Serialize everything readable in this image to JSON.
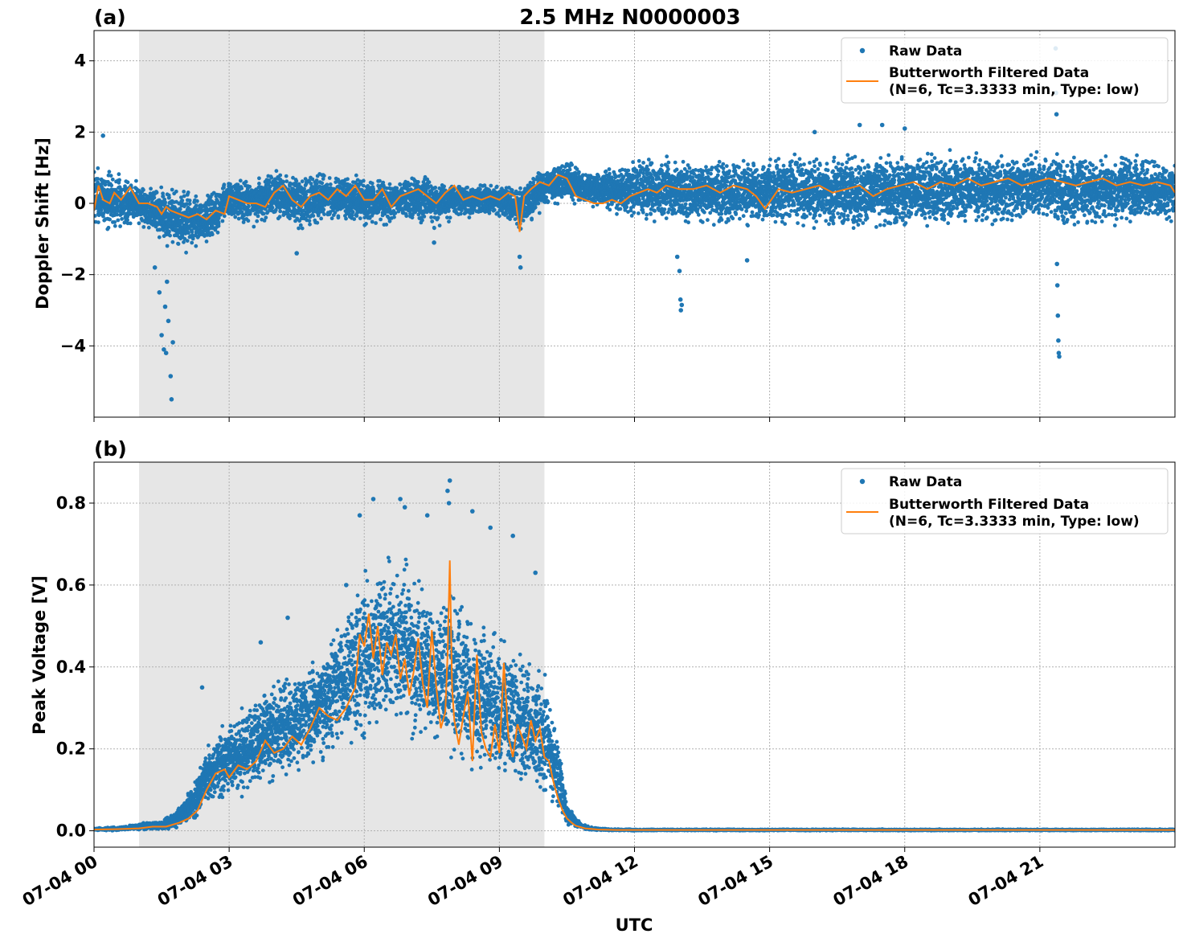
{
  "figure": {
    "title": "2.5 MHz N0000003",
    "xlabel": "UTC",
    "x_tick_labels": [
      "07-04 00",
      "07-04 03",
      "07-04 06",
      "07-04 09",
      "07-04 12",
      "07-04 15",
      "07-04 18",
      "07-04 21"
    ],
    "x_tick_hours": [
      0,
      3,
      6,
      9,
      12,
      15,
      18,
      21
    ],
    "xlim_hours": [
      0,
      24
    ],
    "shaded_interval_hours": [
      1.0,
      10.0
    ],
    "colors": {
      "raw": "#1f77b4",
      "filtered": "#ff7f0e",
      "shade": "#e6e6e6",
      "grid": "#b0b0b0"
    }
  },
  "legend": {
    "raw_label": "Raw Data",
    "filtered_label_line1": "Butterworth Filtered Data",
    "filtered_label_line2": "(N=6, Tc=3.3333 min, Type: low)"
  },
  "chart_data": [
    {
      "type": "scatter",
      "panel_label": "(a)",
      "ylabel": "Doppler Shift [Hz]",
      "ylim": [
        -6.0,
        4.85
      ],
      "y_ticks": [
        -4,
        -2,
        0,
        2,
        4
      ],
      "y_tick_labels": [
        "−4",
        "−2",
        "0",
        "2",
        "4"
      ],
      "series": [
        {
          "name": "Raw Data",
          "kind": "points",
          "envelope": {
            "x": [
              0,
              0.5,
              1,
              1.5,
              2,
              2.5,
              3,
              3.5,
              4,
              4.5,
              5,
              5.5,
              6,
              6.5,
              7,
              7.5,
              8,
              8.5,
              9,
              9.5,
              10,
              10.5,
              11,
              12,
              13,
              14,
              15,
              16,
              17,
              18,
              19,
              20,
              21,
              22,
              23,
              24
            ],
            "low": [
              -1.0,
              -0.8,
              -0.7,
              -1.2,
              -1.5,
              -1.4,
              -0.6,
              -0.7,
              -0.5,
              -0.9,
              -0.7,
              -0.6,
              -0.8,
              -0.7,
              -0.6,
              -0.8,
              -0.5,
              -0.4,
              -0.4,
              -0.9,
              -0.2,
              0.0,
              -0.2,
              -0.6,
              -0.7,
              -0.8,
              -0.8,
              -0.8,
              -0.9,
              -0.8,
              -0.8,
              -0.7,
              -0.7,
              -0.8,
              -0.7,
              -0.7
            ],
            "high": [
              1.3,
              1.0,
              0.7,
              0.6,
              0.5,
              0.4,
              0.8,
              0.7,
              1.0,
              0.9,
              1.0,
              0.9,
              0.9,
              0.8,
              0.9,
              0.8,
              0.7,
              0.6,
              0.6,
              0.6,
              1.1,
              1.3,
              0.9,
              1.4,
              1.4,
              1.4,
              1.5,
              1.5,
              1.5,
              1.6,
              1.6,
              1.5,
              1.6,
              1.5,
              1.5,
              1.4
            ]
          },
          "outliers": [
            {
              "x": 1.35,
              "y": -1.8
            },
            {
              "x": 1.45,
              "y": -2.5
            },
            {
              "x": 1.5,
              "y": -3.7
            },
            {
              "x": 1.55,
              "y": -4.1
            },
            {
              "x": 1.6,
              "y": -4.2
            },
            {
              "x": 1.65,
              "y": -3.3
            },
            {
              "x": 1.7,
              "y": -4.85
            },
            {
              "x": 1.72,
              "y": -5.5
            },
            {
              "x": 1.75,
              "y": -3.9
            },
            {
              "x": 1.58,
              "y": -2.9
            },
            {
              "x": 1.62,
              "y": -2.2
            },
            {
              "x": 0.2,
              "y": 1.9
            },
            {
              "x": 13.0,
              "y": -1.9
            },
            {
              "x": 13.02,
              "y": -2.7
            },
            {
              "x": 13.05,
              "y": -2.85
            },
            {
              "x": 13.03,
              "y": -3.0
            },
            {
              "x": 12.95,
              "y": -1.5
            },
            {
              "x": 14.5,
              "y": -1.6
            },
            {
              "x": 21.35,
              "y": 4.35
            },
            {
              "x": 21.37,
              "y": 2.5
            },
            {
              "x": 21.36,
              "y": 3.1
            },
            {
              "x": 21.38,
              "y": -1.7
            },
            {
              "x": 21.39,
              "y": -2.3
            },
            {
              "x": 21.4,
              "y": -3.15
            },
            {
              "x": 21.41,
              "y": -3.85
            },
            {
              "x": 21.42,
              "y": -4.2
            },
            {
              "x": 21.43,
              "y": -4.3
            },
            {
              "x": 17.0,
              "y": 2.2
            },
            {
              "x": 17.5,
              "y": 2.2
            },
            {
              "x": 18.0,
              "y": 2.1
            },
            {
              "x": 16.0,
              "y": 2.0
            },
            {
              "x": 9.45,
              "y": -1.5
            },
            {
              "x": 9.47,
              "y": -1.8
            },
            {
              "x": 7.55,
              "y": -1.1
            },
            {
              "x": 4.5,
              "y": -1.4
            }
          ]
        },
        {
          "name": "Butterworth Filtered Data\n(N=6, Tc=3.3333 min, Type: low)",
          "kind": "line",
          "x": [
            0,
            0.1,
            0.2,
            0.35,
            0.45,
            0.6,
            0.8,
            1.0,
            1.2,
            1.4,
            1.5,
            1.6,
            1.7,
            1.9,
            2.1,
            2.3,
            2.5,
            2.7,
            2.9,
            3.0,
            3.2,
            3.4,
            3.6,
            3.8,
            4.0,
            4.2,
            4.4,
            4.6,
            4.8,
            5.0,
            5.2,
            5.4,
            5.6,
            5.8,
            6.0,
            6.2,
            6.4,
            6.6,
            6.8,
            7.0,
            7.2,
            7.4,
            7.6,
            7.8,
            8.0,
            8.2,
            8.4,
            8.6,
            8.8,
            9.0,
            9.2,
            9.35,
            9.45,
            9.55,
            9.7,
            9.9,
            10.1,
            10.3,
            10.5,
            10.7,
            10.9,
            11.1,
            11.3,
            11.5,
            11.7,
            11.9,
            12.1,
            12.3,
            12.5,
            12.7,
            13.0,
            13.3,
            13.6,
            13.9,
            14.2,
            14.5,
            14.7,
            14.9,
            15.2,
            15.5,
            15.8,
            16.1,
            16.4,
            16.7,
            17.0,
            17.3,
            17.6,
            17.9,
            18.2,
            18.5,
            18.8,
            19.1,
            19.4,
            19.7,
            20.0,
            20.3,
            20.6,
            20.9,
            21.2,
            21.5,
            21.8,
            22.1,
            22.4,
            22.7,
            23.0,
            23.3,
            23.6,
            23.9,
            24.0
          ],
          "y": [
            -0.2,
            0.5,
            0.1,
            0.0,
            0.3,
            0.1,
            0.45,
            0.0,
            0.0,
            -0.1,
            -0.3,
            -0.1,
            -0.2,
            -0.3,
            -0.4,
            -0.3,
            -0.45,
            -0.2,
            -0.3,
            0.2,
            0.1,
            0.0,
            0.0,
            -0.1,
            0.3,
            0.5,
            0.1,
            -0.1,
            0.2,
            0.3,
            0.1,
            0.4,
            0.2,
            0.5,
            0.1,
            0.1,
            0.4,
            -0.1,
            0.2,
            0.3,
            0.4,
            0.2,
            0.0,
            0.3,
            0.5,
            0.1,
            0.2,
            0.1,
            0.2,
            0.1,
            0.3,
            0.2,
            -0.8,
            0.2,
            0.4,
            0.6,
            0.5,
            0.8,
            0.7,
            0.2,
            0.1,
            0.0,
            0.0,
            0.1,
            0.0,
            0.2,
            0.3,
            0.4,
            0.3,
            0.5,
            0.4,
            0.4,
            0.5,
            0.3,
            0.5,
            0.4,
            0.2,
            -0.15,
            0.4,
            0.3,
            0.4,
            0.5,
            0.3,
            0.4,
            0.5,
            0.2,
            0.4,
            0.5,
            0.6,
            0.4,
            0.6,
            0.5,
            0.7,
            0.5,
            0.6,
            0.7,
            0.5,
            0.6,
            0.7,
            0.6,
            0.5,
            0.6,
            0.7,
            0.5,
            0.6,
            0.5,
            0.6,
            0.5,
            0.3
          ]
        }
      ]
    },
    {
      "type": "scatter",
      "panel_label": "(b)",
      "ylabel": "Peak Voltage [V]",
      "ylim": [
        -0.04,
        0.9
      ],
      "y_ticks": [
        0.0,
        0.2,
        0.4,
        0.6,
        0.8
      ],
      "y_tick_labels": [
        "0.0",
        "0.2",
        "0.4",
        "0.6",
        "0.8"
      ],
      "series": [
        {
          "name": "Raw Data",
          "kind": "points",
          "envelope": {
            "x": [
              0,
              0.5,
              1.0,
              1.5,
              1.8,
              2.0,
              2.3,
              2.5,
              2.8,
              3.0,
              3.5,
              4.0,
              4.5,
              5.0,
              5.5,
              6.0,
              6.5,
              7.0,
              7.5,
              8.0,
              8.5,
              9.0,
              9.5,
              10.0,
              10.3,
              10.5,
              10.7,
              11.0,
              11.5,
              12.0,
              24.0
            ],
            "low": [
              0.0,
              0.0,
              0.0,
              0.0,
              0.0,
              0.01,
              0.02,
              0.05,
              0.06,
              0.06,
              0.08,
              0.1,
              0.13,
              0.16,
              0.18,
              0.2,
              0.22,
              0.2,
              0.18,
              0.14,
              0.12,
              0.1,
              0.08,
              0.05,
              0.03,
              0.01,
              0.005,
              0.0,
              0.0,
              0.0,
              0.0
            ],
            "high": [
              0.008,
              0.01,
              0.02,
              0.025,
              0.05,
              0.08,
              0.15,
              0.22,
              0.27,
              0.28,
              0.33,
              0.38,
              0.4,
              0.45,
              0.55,
              0.65,
              0.7,
              0.68,
              0.6,
              0.62,
              0.55,
              0.5,
              0.45,
              0.42,
              0.25,
              0.08,
              0.03,
              0.01,
              0.005,
              0.004,
              0.004
            ]
          },
          "outliers": [
            {
              "x": 7.9,
              "y": 0.855
            },
            {
              "x": 7.85,
              "y": 0.83
            },
            {
              "x": 7.88,
              "y": 0.8
            },
            {
              "x": 6.2,
              "y": 0.81
            },
            {
              "x": 6.8,
              "y": 0.81
            },
            {
              "x": 7.4,
              "y": 0.77
            },
            {
              "x": 8.4,
              "y": 0.78
            },
            {
              "x": 5.9,
              "y": 0.77
            },
            {
              "x": 6.9,
              "y": 0.79
            },
            {
              "x": 9.3,
              "y": 0.72
            },
            {
              "x": 9.8,
              "y": 0.63
            },
            {
              "x": 2.4,
              "y": 0.35
            },
            {
              "x": 3.7,
              "y": 0.46
            },
            {
              "x": 4.3,
              "y": 0.52
            },
            {
              "x": 5.6,
              "y": 0.6
            },
            {
              "x": 8.8,
              "y": 0.74
            }
          ]
        },
        {
          "name": "Butterworth Filtered Data\n(N=6, Tc=3.3333 min, Type: low)",
          "kind": "line",
          "x": [
            0,
            0.5,
            1.0,
            1.3,
            1.6,
            1.9,
            2.1,
            2.3,
            2.5,
            2.7,
            2.9,
            3.0,
            3.2,
            3.4,
            3.6,
            3.8,
            4.0,
            4.2,
            4.4,
            4.6,
            4.8,
            5.0,
            5.2,
            5.4,
            5.6,
            5.8,
            5.9,
            6.0,
            6.1,
            6.2,
            6.3,
            6.4,
            6.5,
            6.6,
            6.7,
            6.8,
            6.9,
            7.0,
            7.1,
            7.2,
            7.3,
            7.4,
            7.5,
            7.6,
            7.7,
            7.8,
            7.85,
            7.9,
            7.95,
            8.0,
            8.1,
            8.2,
            8.3,
            8.4,
            8.5,
            8.6,
            8.7,
            8.8,
            8.9,
            9.0,
            9.1,
            9.2,
            9.3,
            9.4,
            9.5,
            9.6,
            9.7,
            9.8,
            9.9,
            10.0,
            10.1,
            10.2,
            10.3,
            10.4,
            10.5,
            10.6,
            10.7,
            10.9,
            11.2,
            11.6,
            12.0,
            13.0,
            24.0
          ],
          "y": [
            0.003,
            0.004,
            0.006,
            0.01,
            0.01,
            0.02,
            0.03,
            0.05,
            0.1,
            0.14,
            0.15,
            0.13,
            0.16,
            0.15,
            0.17,
            0.22,
            0.19,
            0.2,
            0.23,
            0.21,
            0.25,
            0.3,
            0.28,
            0.27,
            0.3,
            0.35,
            0.48,
            0.45,
            0.53,
            0.42,
            0.5,
            0.38,
            0.46,
            0.43,
            0.48,
            0.37,
            0.42,
            0.33,
            0.39,
            0.47,
            0.36,
            0.3,
            0.49,
            0.35,
            0.25,
            0.29,
            0.43,
            0.66,
            0.35,
            0.27,
            0.21,
            0.28,
            0.34,
            0.17,
            0.43,
            0.24,
            0.2,
            0.18,
            0.26,
            0.19,
            0.41,
            0.23,
            0.18,
            0.26,
            0.23,
            0.2,
            0.27,
            0.22,
            0.25,
            0.18,
            0.17,
            0.12,
            0.08,
            0.05,
            0.03,
            0.02,
            0.012,
            0.006,
            0.003,
            0.002,
            0.002,
            0.002,
            0.002
          ]
        }
      ]
    }
  ]
}
